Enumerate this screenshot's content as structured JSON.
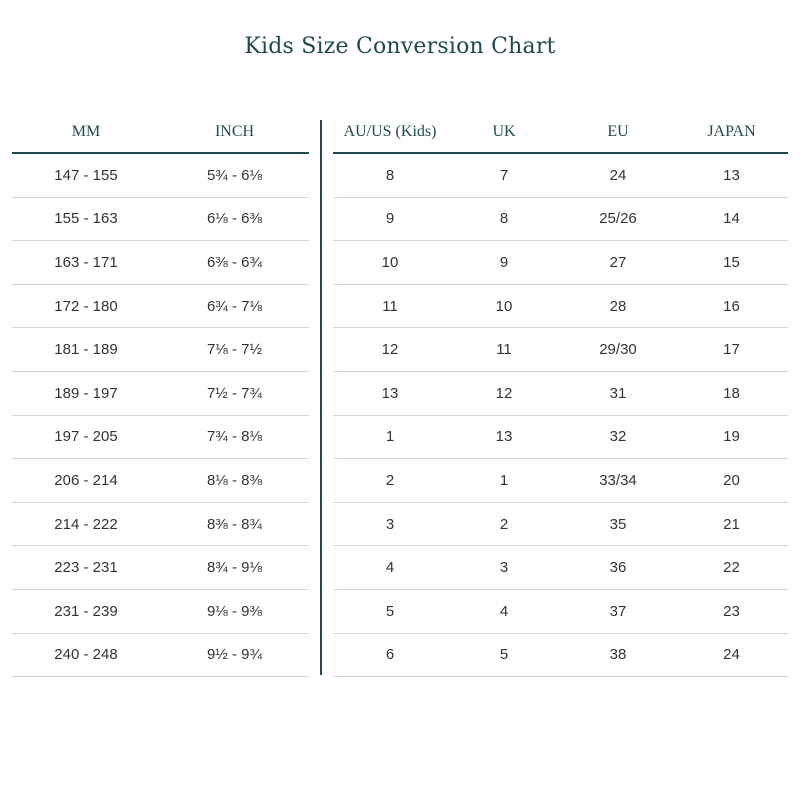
{
  "title": "Kids Size Conversion Chart",
  "colors": {
    "heading": "#1f4a4b",
    "rule": "#1f4a4b",
    "row_border": "#d6d6d6"
  },
  "left_table": {
    "headers": [
      "MM",
      "INCH"
    ],
    "rows": [
      [
        "147 - 155",
        "5¾ - 6⅛"
      ],
      [
        "155 - 163",
        "6⅛ - 6⅜"
      ],
      [
        "163 - 171",
        "6⅜ - 6¾"
      ],
      [
        "172 - 180",
        "6¾ - 7⅛"
      ],
      [
        "181 - 189",
        "7⅛ - 7½"
      ],
      [
        "189 - 197",
        "7½ - 7¾"
      ],
      [
        "197 - 205",
        "7¾ - 8⅛"
      ],
      [
        "206 - 214",
        "8⅛ - 8⅜"
      ],
      [
        "214 - 222",
        "8⅜ - 8¾"
      ],
      [
        "223 - 231",
        "8¾ - 9⅛"
      ],
      [
        "231 - 239",
        "9⅛ - 9⅜"
      ],
      [
        "240 - 248",
        "9½ - 9¾"
      ]
    ]
  },
  "right_table": {
    "headers": [
      "AU/US (Kids)",
      "UK",
      "EU",
      "JAPAN"
    ],
    "rows": [
      [
        "8",
        "7",
        "24",
        "13"
      ],
      [
        "9",
        "8",
        "25/26",
        "14"
      ],
      [
        "10",
        "9",
        "27",
        "15"
      ],
      [
        "11",
        "10",
        "28",
        "16"
      ],
      [
        "12",
        "11",
        "29/30",
        "17"
      ],
      [
        "13",
        "12",
        "31",
        "18"
      ],
      [
        "1",
        "13",
        "32",
        "19"
      ],
      [
        "2",
        "1",
        "33/34",
        "20"
      ],
      [
        "3",
        "2",
        "35",
        "21"
      ],
      [
        "4",
        "3",
        "36",
        "22"
      ],
      [
        "5",
        "4",
        "37",
        "23"
      ],
      [
        "6",
        "5",
        "38",
        "24"
      ]
    ]
  }
}
